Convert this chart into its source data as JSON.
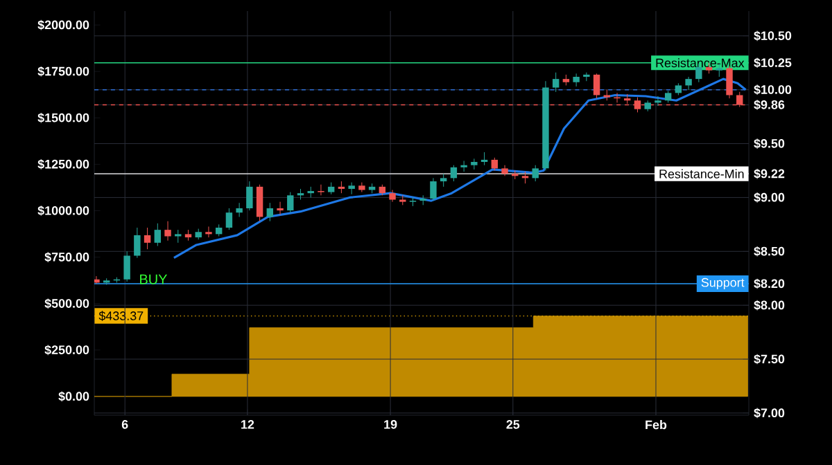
{
  "chart_data": {
    "type": "candlestick",
    "x": [
      4.6,
      5.1,
      5.6,
      6.1,
      6.6,
      7.1,
      7.6,
      8.1,
      8.6,
      9.1,
      9.6,
      10.1,
      10.6,
      11.1,
      11.6,
      12.1,
      12.6,
      13.1,
      13.6,
      14.1,
      14.6,
      15.1,
      15.6,
      16.1,
      16.6,
      17.1,
      17.6,
      18.1,
      18.6,
      19.1,
      19.6,
      20.1,
      20.6,
      21.1,
      21.6,
      22.1,
      22.6,
      23.1,
      23.6,
      24.1,
      24.6,
      25.1,
      25.6,
      26.1,
      26.6,
      27.1,
      27.6,
      28.1,
      28.6,
      29.1,
      29.6,
      30.1,
      30.6,
      31.1,
      31.6,
      32.1,
      32.6,
      33.1,
      33.6,
      34.1,
      34.6,
      35.1,
      35.6,
      36.1
    ],
    "ohlc": [
      [
        8.24,
        8.27,
        8.2,
        8.21
      ],
      [
        8.21,
        8.25,
        8.19,
        8.23
      ],
      [
        8.23,
        8.26,
        8.21,
        8.24
      ],
      [
        8.24,
        8.5,
        8.22,
        8.46
      ],
      [
        8.46,
        8.72,
        8.44,
        8.65
      ],
      [
        8.65,
        8.72,
        8.52,
        8.58
      ],
      [
        8.58,
        8.76,
        8.55,
        8.7
      ],
      [
        8.7,
        8.78,
        8.6,
        8.64
      ],
      [
        8.64,
        8.7,
        8.58,
        8.66
      ],
      [
        8.66,
        8.7,
        8.6,
        8.63
      ],
      [
        8.63,
        8.71,
        8.61,
        8.68
      ],
      [
        8.68,
        8.73,
        8.63,
        8.66
      ],
      [
        8.66,
        8.75,
        8.64,
        8.72
      ],
      [
        8.72,
        8.9,
        8.7,
        8.86
      ],
      [
        8.86,
        8.95,
        8.82,
        8.9
      ],
      [
        8.9,
        9.15,
        8.88,
        9.1
      ],
      [
        9.1,
        9.12,
        8.78,
        8.82
      ],
      [
        8.82,
        8.95,
        8.78,
        8.9
      ],
      [
        8.9,
        8.96,
        8.84,
        8.88
      ],
      [
        8.88,
        9.05,
        8.86,
        9.02
      ],
      [
        9.02,
        9.08,
        8.98,
        9.04
      ],
      [
        9.04,
        9.1,
        9.0,
        9.06
      ],
      [
        9.06,
        9.12,
        9.02,
        9.05
      ],
      [
        9.05,
        9.14,
        9.03,
        9.1
      ],
      [
        9.1,
        9.15,
        9.04,
        9.08
      ],
      [
        9.08,
        9.14,
        9.03,
        9.11
      ],
      [
        9.11,
        9.14,
        9.05,
        9.07
      ],
      [
        9.07,
        9.13,
        9.04,
        9.1
      ],
      [
        9.1,
        9.12,
        9.02,
        9.04
      ],
      [
        9.04,
        9.07,
        8.96,
        8.98
      ],
      [
        8.98,
        9.02,
        8.93,
        8.96
      ],
      [
        8.96,
        9.0,
        8.92,
        8.97
      ],
      [
        8.97,
        9.02,
        8.93,
        8.99
      ],
      [
        8.99,
        9.18,
        8.97,
        9.15
      ],
      [
        9.15,
        9.22,
        9.1,
        9.18
      ],
      [
        9.18,
        9.3,
        9.15,
        9.28
      ],
      [
        9.28,
        9.34,
        9.24,
        9.3
      ],
      [
        9.3,
        9.36,
        9.26,
        9.33
      ],
      [
        9.33,
        9.42,
        9.3,
        9.35
      ],
      [
        9.35,
        9.37,
        9.25,
        9.27
      ],
      [
        9.27,
        9.3,
        9.2,
        9.22
      ],
      [
        9.22,
        9.25,
        9.17,
        9.2
      ],
      [
        9.2,
        9.24,
        9.13,
        9.18
      ],
      [
        9.18,
        9.3,
        9.15,
        9.27
      ],
      [
        9.27,
        10.08,
        9.25,
        10.02
      ],
      [
        10.02,
        10.16,
        9.98,
        10.1
      ],
      [
        10.1,
        10.14,
        10.04,
        10.07
      ],
      [
        10.07,
        10.15,
        10.03,
        10.12
      ],
      [
        10.12,
        10.16,
        10.08,
        10.14
      ],
      [
        10.14,
        10.15,
        9.92,
        9.95
      ],
      [
        9.95,
        10.0,
        9.9,
        9.93
      ],
      [
        9.93,
        9.97,
        9.88,
        9.92
      ],
      [
        9.92,
        9.96,
        9.87,
        9.9
      ],
      [
        9.9,
        9.93,
        9.79,
        9.82
      ],
      [
        9.82,
        9.9,
        9.8,
        9.88
      ],
      [
        9.88,
        9.94,
        9.85,
        9.9
      ],
      [
        9.9,
        9.99,
        9.88,
        9.97
      ],
      [
        9.97,
        10.06,
        9.95,
        10.04
      ],
      [
        10.04,
        10.12,
        10.0,
        10.1
      ],
      [
        10.1,
        10.24,
        10.07,
        10.21
      ],
      [
        10.21,
        10.25,
        10.15,
        10.18
      ],
      [
        10.18,
        10.24,
        10.12,
        10.2
      ],
      [
        10.2,
        10.22,
        9.92,
        9.95
      ],
      [
        9.95,
        9.98,
        9.84,
        9.86
      ]
    ],
    "series": [
      {
        "type": "line",
        "color": "#1e78e6",
        "x": [
          8.4,
          9.5,
          11.5,
          13,
          14.6,
          17,
          19,
          21,
          22,
          24,
          26,
          26.5,
          27.5,
          28.7,
          30,
          31.5,
          33,
          34.5,
          35.3,
          36,
          36.4
        ],
        "values": [
          8.44,
          8.56,
          8.65,
          8.82,
          8.87,
          9.0,
          9.04,
          8.97,
          9.04,
          9.26,
          9.23,
          9.25,
          9.64,
          9.9,
          9.95,
          9.94,
          9.9,
          10.03,
          10.1,
          10.06,
          10.0
        ]
      },
      {
        "type": "area",
        "axis": "y2",
        "color": "#c08a00",
        "x": [
          4.5,
          8.3,
          8.3,
          12.1,
          12.1,
          26.0,
          26.0,
          36.5
        ],
        "values": [
          0,
          0,
          120,
          120,
          370,
          370,
          433,
          433
        ]
      }
    ],
    "xlim": [
      4.5,
      36.55
    ],
    "xticks": [
      6,
      12,
      19,
      25,
      {
        "value": 32,
        "label": "Feb"
      }
    ],
    "ylim": [
      6.98,
      10.73
    ],
    "yticks": [
      {
        "value": 7.0,
        "label": "$7.00"
      },
      {
        "value": 7.5,
        "label": "$7.50"
      },
      {
        "value": 8.0,
        "label": "$8.00"
      },
      {
        "value": 8.2,
        "label": "$8.20"
      },
      {
        "value": 8.5,
        "label": "$8.50"
      },
      {
        "value": 9.0,
        "label": "$9.00"
      },
      {
        "value": 9.22,
        "label": "$9.22"
      },
      {
        "value": 9.5,
        "label": "$9.50"
      },
      {
        "value": 9.86,
        "label": "$9.86"
      },
      {
        "value": 10.0,
        "label": "$10.00"
      },
      {
        "value": 10.25,
        "label": "$10.25"
      },
      {
        "value": 10.5,
        "label": "$10.50"
      }
    ],
    "y2lim": [
      -101,
      2075
    ],
    "y2ticks": [
      {
        "value": 0,
        "label": "$0.00"
      },
      {
        "value": 250,
        "label": "$250.00"
      },
      {
        "value": 500,
        "label": "$500.00"
      },
      {
        "value": 750,
        "label": "$750.00"
      },
      {
        "value": 1000,
        "label": "$1000.00"
      },
      {
        "value": 1250,
        "label": "$1250.00"
      },
      {
        "value": 1500,
        "label": "$1500.00"
      },
      {
        "value": 1750,
        "label": "$1750.00"
      },
      {
        "value": 2000,
        "label": "$2000.00"
      }
    ],
    "ref_lines": [
      {
        "axis": "y",
        "value": 10.25,
        "label": "Resistance-Max",
        "color": "#22d67f",
        "line_style": "solid"
      },
      {
        "axis": "y",
        "value": 10.0,
        "color": "#2f6fd6",
        "line_style": "dashed"
      },
      {
        "axis": "y",
        "value": 9.86,
        "color": "#f05350",
        "line_style": "dashed"
      },
      {
        "axis": "y",
        "value": 9.22,
        "label": "Resistance-Min",
        "color": "#ffffff",
        "line_style": "solid"
      },
      {
        "axis": "y",
        "value": 8.2,
        "label": "Support",
        "color": "#2196f3",
        "line_style": "solid"
      },
      {
        "axis": "y2",
        "value": 433.37,
        "label": "$433.37",
        "color": "#f0b000",
        "line_style": "dotted"
      }
    ],
    "annotations": [
      "BUY"
    ],
    "grid": true
  }
}
